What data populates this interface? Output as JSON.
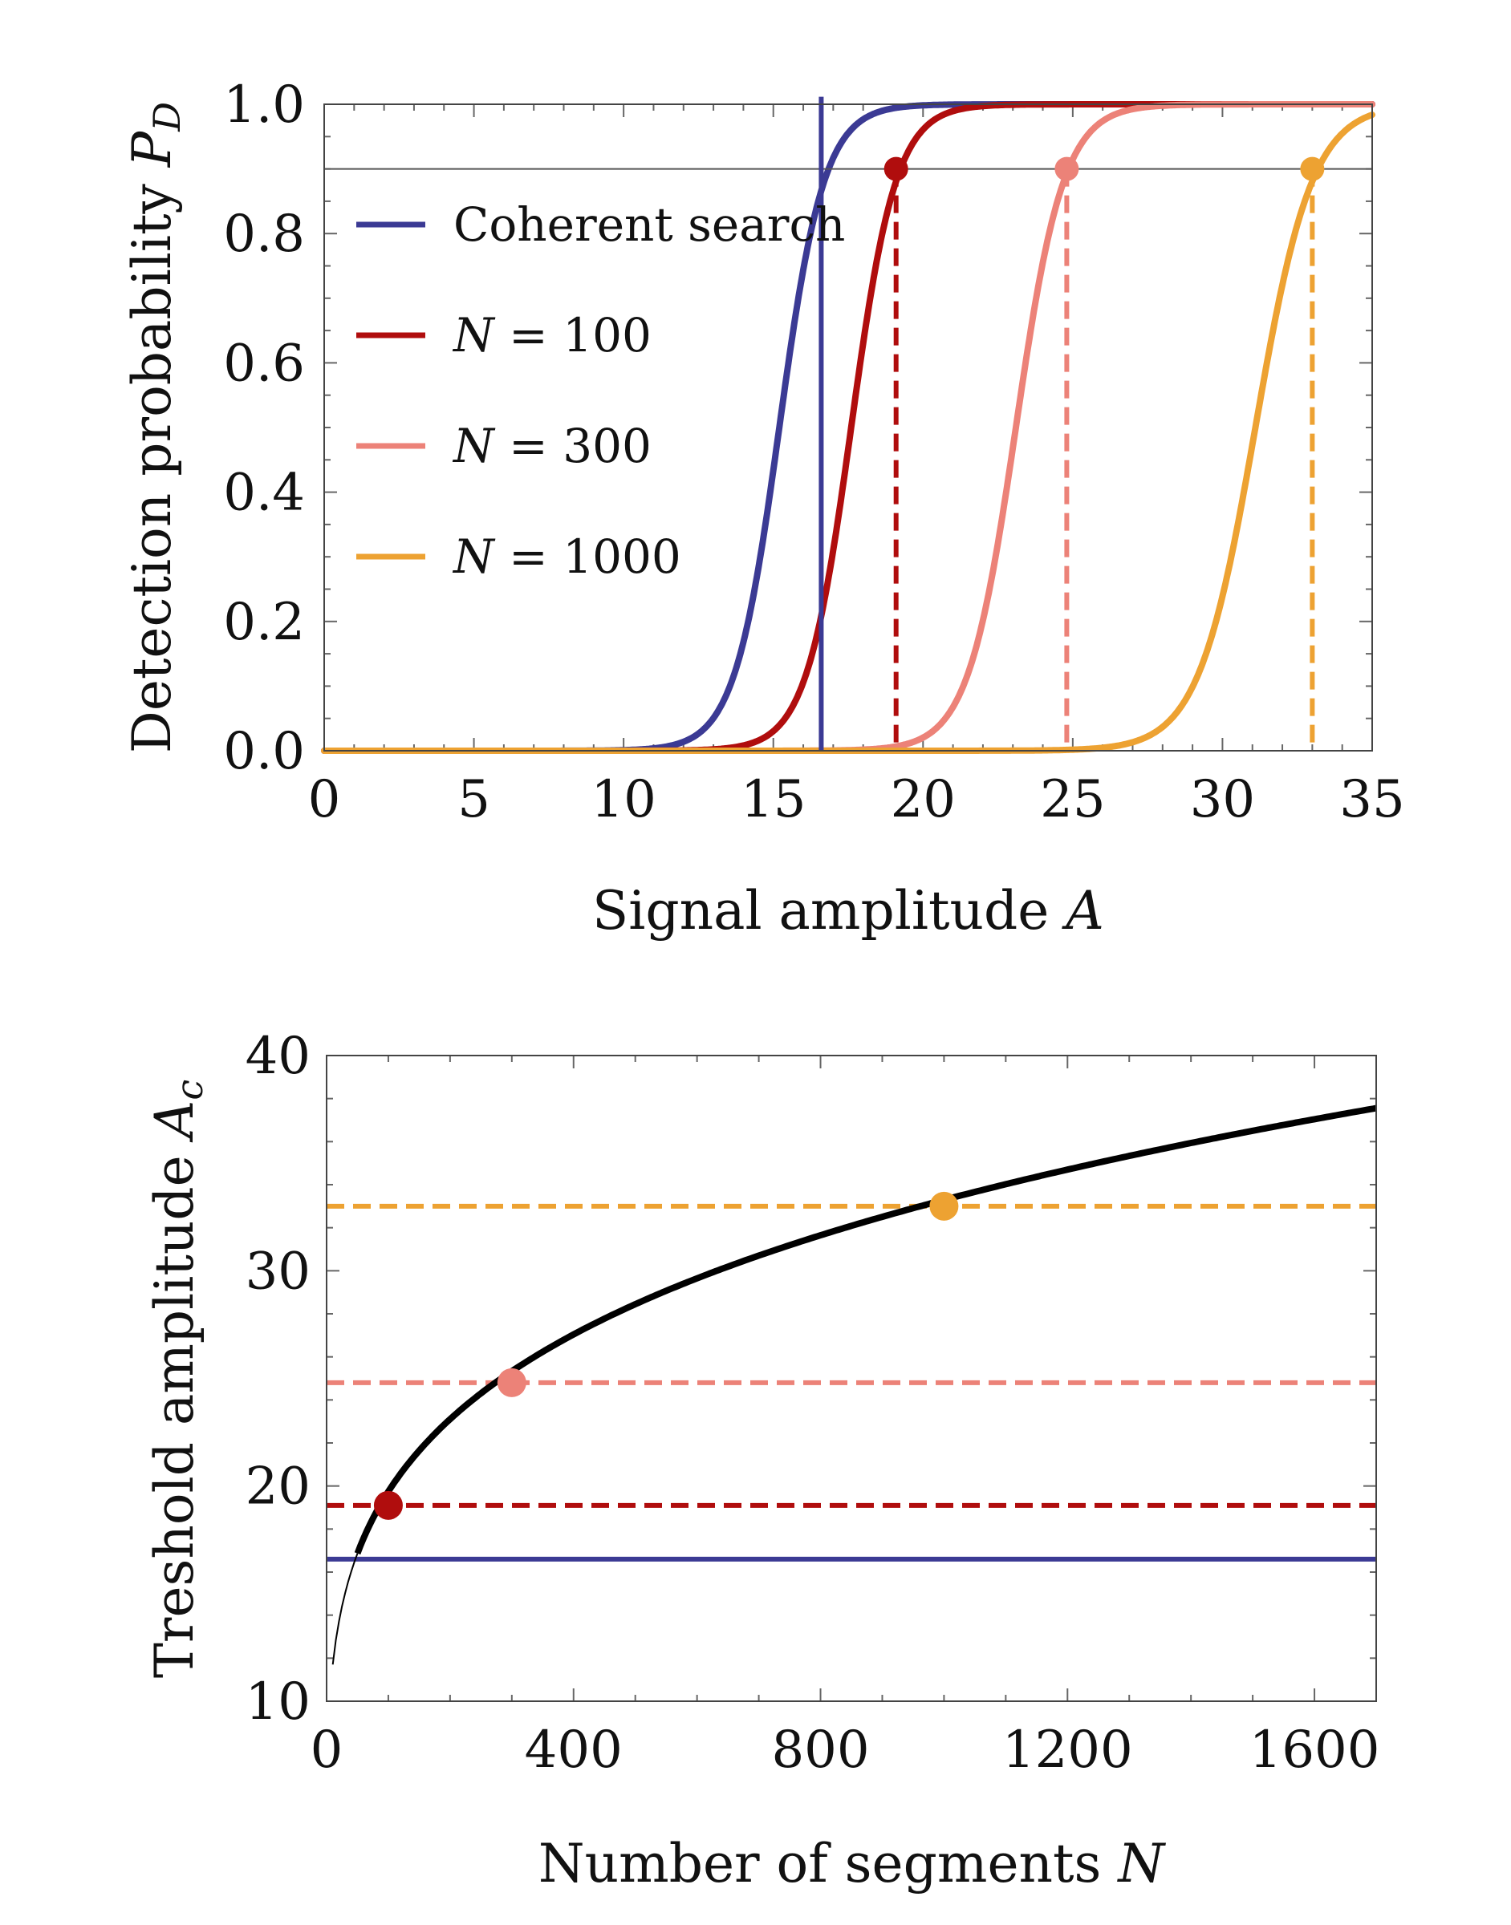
{
  "colors": {
    "coherent": "#3b3a94",
    "n100": "#b00d0d",
    "n300": "#ec8278",
    "n1000": "#eda232",
    "threshold_line": "#555555",
    "curve": "#000000"
  },
  "chart_data": [
    {
      "type": "line",
      "title": "",
      "xlabel": "Signal amplitude A",
      "ylabel": "Detection probability P_D",
      "xlim": [
        0,
        35
      ],
      "ylim": [
        0,
        1
      ],
      "xticks": [
        "0",
        "5",
        "10",
        "15",
        "20",
        "25",
        "30",
        "35"
      ],
      "yticks": [
        "0.0",
        "0.2",
        "0.4",
        "0.6",
        "0.8",
        "1.0"
      ],
      "legend_position": "center-left",
      "detection_threshold": 0.9,
      "series": [
        {
          "name": "Coherent search",
          "color_key": "coherent",
          "center": 15.2,
          "width": 0.75,
          "threshold_A": 16.6,
          "marker": false
        },
        {
          "name": "N = 100",
          "color_key": "n100",
          "center": 17.6,
          "width": 0.75,
          "threshold_A": 19.1,
          "marker": true
        },
        {
          "name": "N = 300",
          "color_key": "n300",
          "center": 23.1,
          "width": 0.8,
          "threshold_A": 24.8,
          "marker": true
        },
        {
          "name": "N = 1000",
          "color_key": "n1000",
          "center": 31.1,
          "width": 0.95,
          "threshold_A": 33.0,
          "marker": true
        }
      ],
      "legend": [
        {
          "label_var": "",
          "label_rest": "Coherent search",
          "color_key": "coherent"
        },
        {
          "label_var": "N",
          "label_rest": " = 100",
          "color_key": "n100"
        },
        {
          "label_var": "N",
          "label_rest": " = 300",
          "color_key": "n300"
        },
        {
          "label_var": "N",
          "label_rest": " = 1000",
          "color_key": "n1000"
        }
      ]
    },
    {
      "type": "line",
      "title": "",
      "xlabel": "Number of segments N",
      "ylabel": "Treshold amplitude A_c",
      "xlim": [
        0,
        1700
      ],
      "ylim": [
        10,
        40
      ],
      "xticks": [
        "0",
        "400",
        "800",
        "1200",
        "1600"
      ],
      "yticks": [
        "10",
        "20",
        "30",
        "40"
      ],
      "curve": {
        "formula": "A_c = 6.94 * N^0.227",
        "thin_until_N": 50
      },
      "horizontal_lines": [
        {
          "y": 16.6,
          "color_key": "coherent",
          "dashed": false
        },
        {
          "y": 19.1,
          "color_key": "n100",
          "dashed": true
        },
        {
          "y": 24.8,
          "color_key": "n300",
          "dashed": true
        },
        {
          "y": 33.0,
          "color_key": "n1000",
          "dashed": true
        }
      ],
      "points": [
        {
          "x": 100,
          "y": 19.1,
          "color_key": "n100"
        },
        {
          "x": 300,
          "y": 24.8,
          "color_key": "n300"
        },
        {
          "x": 1000,
          "y": 33.0,
          "color_key": "n1000"
        }
      ]
    }
  ]
}
